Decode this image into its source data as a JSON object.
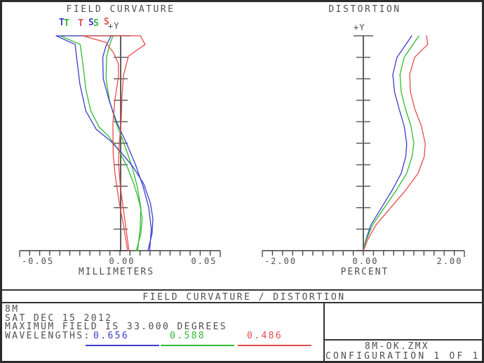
{
  "field_curvature_plot": {
    "title": "FIELD CURVATURE",
    "y_axis_label": "+Y",
    "x_axis_label": "MILLIMETERS",
    "x_ticks": [
      "-0.05",
      "0.00",
      "0.05"
    ],
    "legend": [
      "T",
      "T",
      "T",
      "S",
      "S",
      "S"
    ]
  },
  "distortion_plot": {
    "title": "DISTORTION",
    "y_axis_label": "+Y",
    "x_axis_label": "PERCENT",
    "x_ticks": [
      "-2.00",
      "0.00",
      "2.00"
    ]
  },
  "footer": {
    "bar_title": "FIELD CURVATURE / DISTORTION",
    "lens_name": "8M",
    "date": "SAT DEC 15 2012",
    "max_field": "MAXIMUM FIELD IS 33.000 DEGREES",
    "wavelengths_label": "WAVELENGTHS:",
    "wavelengths": [
      "0.656",
      "0.588",
      "0.486"
    ],
    "file_name": "8M-OK.ZMX",
    "configuration": "CONFIGURATION 1 OF 1"
  },
  "colors": {
    "wavelength_0656": "#3c3ccc",
    "wavelength_0588": "#2fba2f",
    "wavelength_0486": "#e64c4c",
    "axis_gray": "#5f5f5f",
    "axis_dark": "#3f3f3f",
    "text": "#4f4f4f",
    "frame": "#2b2b2b"
  },
  "chart_data": [
    {
      "type": "line",
      "title": "FIELD CURVATURE",
      "xlabel": "MILLIMETERS",
      "ylabel": "+Y field (fraction of max field, max = 33.000 degrees)",
      "xlim": [
        -0.06,
        0.06
      ],
      "ylim": [
        0,
        1
      ],
      "x_tick_labels": [
        "-0.05",
        "0.00",
        "0.05"
      ],
      "grid": false,
      "legend_position": "top-left",
      "series": [
        {
          "name": "T 0.588",
          "color": "#2fba2f",
          "points": [
            [
              0,
              0.0095
            ],
            [
              0.08,
              0.0122
            ],
            [
              0.15,
              0.013
            ],
            [
              0.22,
              0.0115
            ],
            [
              0.31,
              0.008
            ],
            [
              0.39,
              0.004
            ],
            [
              0.465,
              -0.001
            ],
            [
              0.53,
              -0.007
            ],
            [
              0.575,
              -0.013
            ],
            [
              0.65,
              -0.018
            ],
            [
              0.75,
              -0.021
            ],
            [
              0.85,
              -0.0225
            ],
            [
              0.91,
              -0.0235
            ],
            [
              0.96,
              -0.0245
            ],
            [
              1.0,
              -0.0365
            ],
            [
              1.0,
              -0.0035
            ]
          ]
        },
        {
          "name": "S 0.588",
          "color": "#2fba2f",
          "points": [
            [
              0,
              0.0102
            ],
            [
              0.1,
              0.0118
            ],
            [
              0.2,
              0.0122
            ],
            [
              0.3,
              0.01
            ],
            [
              0.4,
              0.0065
            ],
            [
              0.5,
              0.002
            ],
            [
              0.6,
              -0.003
            ],
            [
              0.7,
              -0.0068
            ],
            [
              0.8,
              -0.0088
            ],
            [
              0.9,
              -0.0085
            ],
            [
              0.95,
              -0.007
            ],
            [
              1.0,
              -0.0047
            ]
          ]
        },
        {
          "name": "T 0.656",
          "color": "#3c3ccc",
          "points": [
            [
              0,
              0.0165
            ],
            [
              0.08,
              0.019
            ],
            [
              0.147,
              0.0195
            ],
            [
              0.22,
              0.018
            ],
            [
              0.31,
              0.014
            ],
            [
              0.39,
              0.0075
            ],
            [
              0.46,
              0.0
            ],
            [
              0.51,
              -0.006
            ],
            [
              0.565,
              -0.0148
            ],
            [
              0.65,
              -0.021
            ],
            [
              0.775,
              -0.0246
            ],
            [
              0.85,
              -0.0258
            ],
            [
              0.905,
              -0.0267
            ],
            [
              0.96,
              -0.0275
            ],
            [
              1.0,
              -0.039
            ],
            [
              1.0,
              -0.0038
            ]
          ]
        },
        {
          "name": "S 0.656",
          "color": "#3c3ccc",
          "points": [
            [
              0,
              0.0175
            ],
            [
              0.1,
              0.0185
            ],
            [
              0.2,
              0.017
            ],
            [
              0.3,
              0.0135
            ],
            [
              0.4,
              0.009
            ],
            [
              0.5,
              0.0035
            ],
            [
              0.6,
              -0.0025
            ],
            [
              0.7,
              -0.007
            ],
            [
              0.8,
              -0.0105
            ],
            [
              0.9,
              -0.0108
            ],
            [
              0.95,
              -0.009
            ],
            [
              1.0,
              -0.0058
            ]
          ]
        },
        {
          "name": "T 0.486",
          "color": "#e64c4c",
          "points": [
            [
              0,
              0.0042
            ],
            [
              0.12,
              0.0017
            ],
            [
              0.22,
              -0.0008
            ],
            [
              0.356,
              -0.0034
            ],
            [
              0.45,
              -0.0045
            ],
            [
              0.59,
              -0.0047
            ],
            [
              0.7,
              -0.0035
            ],
            [
              0.81,
              -0.0013
            ],
            [
              0.87,
              -0.0014
            ],
            [
              0.92,
              -0.0042
            ],
            [
              0.97,
              -0.009
            ],
            [
              1.0,
              -0.0229
            ],
            [
              1.0,
              0.0119
            ]
          ]
        },
        {
          "name": "S 0.486",
          "color": "#e64c4c",
          "points": [
            [
              0,
              0.005
            ],
            [
              0.19,
              0.0017
            ],
            [
              0.3,
              -0.0002
            ],
            [
              0.41,
              -0.0013
            ],
            [
              0.5,
              -0.0008
            ],
            [
              0.61,
              0.0004
            ],
            [
              0.72,
              0.0008
            ],
            [
              0.814,
              0.0017
            ],
            [
              0.905,
              0.0047
            ],
            [
              0.96,
              0.0148
            ],
            [
              1.0,
              0.0119
            ]
          ]
        }
      ]
    },
    {
      "type": "line",
      "title": "DISTORTION",
      "xlabel": "PERCENT",
      "ylabel": "+Y field (fraction of max field, max = 33.000 degrees)",
      "xlim": [
        -2.4,
        2.4
      ],
      "ylim": [
        0,
        1
      ],
      "x_tick_labels": [
        "-2.00",
        "0.00",
        "2.00"
      ],
      "grid": false,
      "series": [
        {
          "name": "0.656",
          "color": "#3c3ccc",
          "points": [
            [
              0,
              0
            ],
            [
              0.05,
              0.06
            ],
            [
              0.12,
              0.18
            ],
            [
              0.2,
              0.43
            ],
            [
              0.28,
              0.68
            ],
            [
              0.36,
              0.9
            ],
            [
              0.44,
              1.01
            ],
            [
              0.5,
              1.03
            ],
            [
              0.58,
              0.97
            ],
            [
              0.66,
              0.85
            ],
            [
              0.74,
              0.74
            ],
            [
              0.82,
              0.7
            ],
            [
              0.9,
              0.8
            ],
            [
              1.0,
              1.15
            ]
          ]
        },
        {
          "name": "0.588",
          "color": "#2fba2f",
          "points": [
            [
              0,
              0
            ],
            [
              0.05,
              0.07
            ],
            [
              0.12,
              0.22
            ],
            [
              0.2,
              0.5
            ],
            [
              0.28,
              0.78
            ],
            [
              0.36,
              1.03
            ],
            [
              0.44,
              1.16
            ],
            [
              0.5,
              1.2
            ],
            [
              0.58,
              1.13
            ],
            [
              0.66,
              1.0
            ],
            [
              0.74,
              0.9
            ],
            [
              0.82,
              0.87
            ],
            [
              0.9,
              0.97
            ],
            [
              1.0,
              1.32
            ]
          ]
        },
        {
          "name": "0.486",
          "color": "#e64c4c",
          "points": [
            [
              0,
              0
            ],
            [
              0.05,
              0.1
            ],
            [
              0.12,
              0.3
            ],
            [
              0.2,
              0.65
            ],
            [
              0.28,
              1.0
            ],
            [
              0.36,
              1.3
            ],
            [
              0.44,
              1.45
            ],
            [
              0.5,
              1.47
            ],
            [
              0.58,
              1.38
            ],
            [
              0.66,
              1.22
            ],
            [
              0.74,
              1.12
            ],
            [
              0.82,
              1.1
            ],
            [
              0.9,
              1.22
            ],
            [
              0.96,
              1.53
            ],
            [
              1.0,
              1.5
            ]
          ]
        }
      ]
    }
  ]
}
